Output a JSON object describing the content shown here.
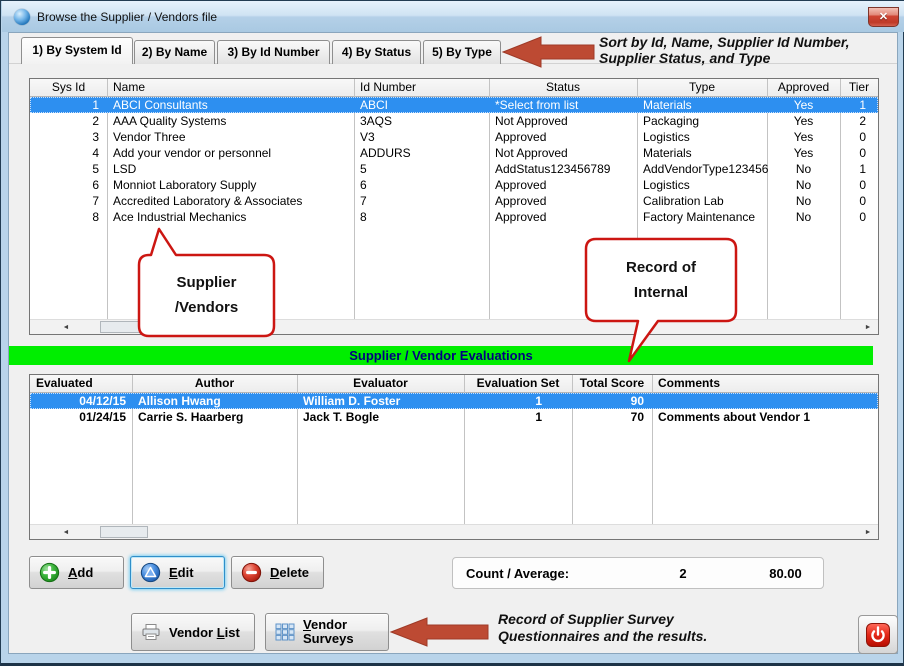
{
  "window": {
    "title": "Browse the Supplier / Vendors file"
  },
  "icons": {
    "close": "✕",
    "scroll_left": "◄",
    "scroll_right": "►",
    "add_icon": "green-plus-circle",
    "edit_icon": "blue-triangle-circle",
    "delete_icon": "red-minus-circle",
    "vendor_list_icon": "printer",
    "vendor_surveys_icon": "grid-of-squares",
    "power_icon": "red-power-symbol",
    "app_icon": "blue-globe"
  },
  "tabs": {
    "items": [
      "1) By System Id",
      "2) By Name",
      "3) By Id Number",
      "4) By Status",
      "5) By Type"
    ],
    "active_index": 0
  },
  "annotations": {
    "sort_line1": "Sort by Id, Name, Supplier Id Number,",
    "sort_line2": "Supplier Status, and Type",
    "surveys_line1": "Record of Supplier Survey",
    "surveys_line2": "Questionnaires and the results."
  },
  "callouts": {
    "supplier_vendors": {
      "line1": "Supplier",
      "line2": "/Vendors"
    },
    "record_internal": {
      "line1": "Record of",
      "line2": "Internal"
    }
  },
  "vendor_grid": {
    "columns": [
      "Sys Id",
      "Name",
      "Id Number",
      "Status",
      "Type",
      "Approved",
      "Tier"
    ],
    "selected_row": 0,
    "rows": [
      [
        "1",
        "ABCI Consultants",
        "ABCI",
        "*Select from list",
        "Materials",
        "Yes",
        "1"
      ],
      [
        "2",
        "AAA Quality Systems",
        "3AQS",
        "Not Approved",
        "Packaging",
        "Yes",
        "2"
      ],
      [
        "3",
        "Vendor Three",
        "V3",
        "Approved",
        "Logistics",
        "Yes",
        "0"
      ],
      [
        "4",
        "Add your vendor or personnel",
        "ADDURS",
        "Not Approved",
        "Materials",
        "Yes",
        "0"
      ],
      [
        "5",
        "LSD",
        "5",
        "AddStatus123456789",
        "AddVendorType123456",
        "No",
        "1"
      ],
      [
        "6",
        "Monniot Laboratory Supply",
        "6",
        "Approved",
        "Logistics",
        "No",
        "0"
      ],
      [
        "7",
        "Accredited Laboratory & Associates",
        "7",
        "Approved",
        "Calibration Lab",
        "No",
        "0"
      ],
      [
        "8",
        "Ace Industrial Mechanics",
        "8",
        "Approved",
        "Factory Maintenance",
        "No",
        "0"
      ]
    ]
  },
  "banner": {
    "label": "Supplier / Vendor Evaluations"
  },
  "eval_grid": {
    "columns": [
      "Evaluated",
      "Author",
      "Evaluator",
      "Evaluation Set",
      "Total Score",
      "Comments"
    ],
    "selected_row": 0,
    "rows": [
      [
        "04/12/15",
        "Allison Hwang",
        "William D. Foster",
        "1",
        "90",
        ""
      ],
      [
        "01/24/15",
        "Carrie S. Haarberg",
        "Jack T. Bogle",
        "1",
        "70",
        "Comments about Vendor 1"
      ]
    ]
  },
  "action_buttons": {
    "add": {
      "label": "Add",
      "underline_index": 0
    },
    "edit": {
      "label": "Edit",
      "underline_index": 0
    },
    "delete": {
      "label": "Delete",
      "underline_index": 0
    }
  },
  "summary": {
    "label": "Count / Average:",
    "count": "2",
    "average": "80.00"
  },
  "footer_buttons": {
    "vendor_list": {
      "label": "Vendor List",
      "underline_index": 7
    },
    "vendor_surveys_line1": {
      "label": "Vendor",
      "underline_index": 0
    },
    "vendor_surveys_line2": {
      "label": "Surveys",
      "underline_index": -1
    }
  },
  "colors": {
    "selection": "#2d8ff0",
    "banner_bg": "#00ee00",
    "banner_text": "#000080",
    "callout_red": "#cc1612",
    "arrow_red": "#bd4a33"
  }
}
